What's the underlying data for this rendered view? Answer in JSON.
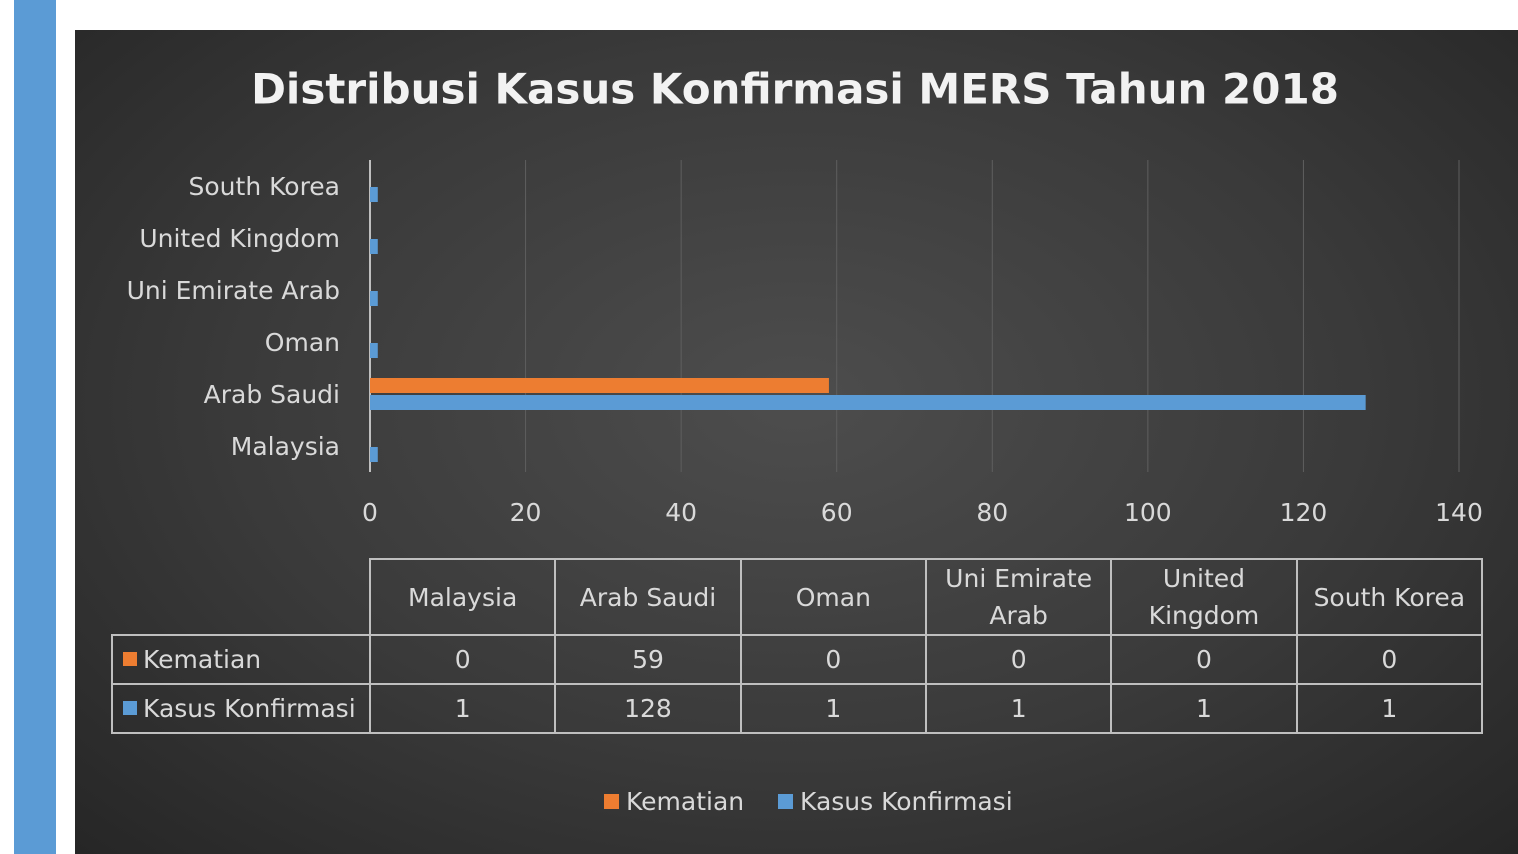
{
  "chart_data": {
    "type": "bar",
    "orientation": "horizontal",
    "title": "Distribusi Kasus Konfirmasi MERS Tahun 2018",
    "categories": [
      "Malaysia",
      "Arab Saudi",
      "Oman",
      "Uni Emirate Arab",
      "United Kingdom",
      "South Korea"
    ],
    "series": [
      {
        "name": "Kematian",
        "color": "#ed7d31",
        "values": [
          0,
          59,
          0,
          0,
          0,
          0
        ]
      },
      {
        "name": "Kasus Konfirmasi",
        "color": "#5b9bd5",
        "values": [
          1,
          128,
          1,
          1,
          1,
          1
        ]
      }
    ],
    "xlim": [
      0,
      140
    ],
    "xticks": [
      0,
      20,
      40,
      60,
      80,
      100,
      120,
      140
    ],
    "grid": true,
    "legend": "bottom",
    "data_table": true
  }
}
